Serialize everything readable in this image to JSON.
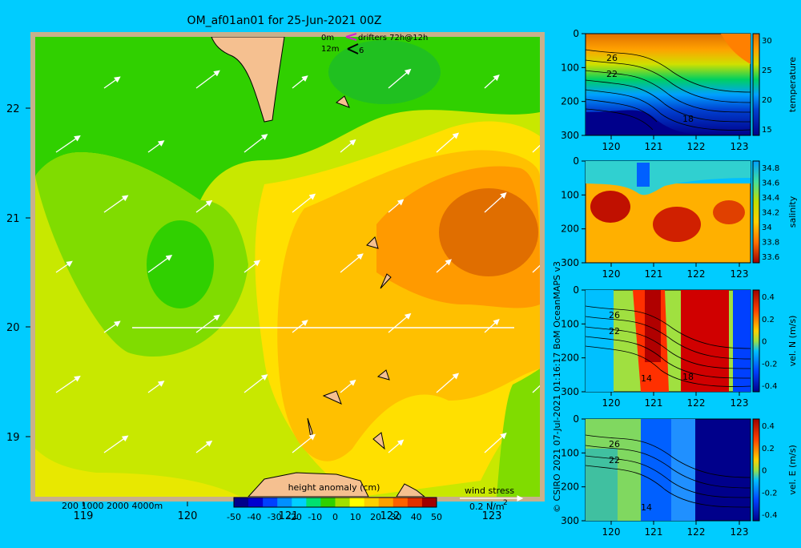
{
  "title": "OM_af01an01 for 25-Jun-2021 00Z",
  "map": {
    "lon_ticks": [
      "119",
      "120",
      "121",
      "122",
      "123"
    ],
    "lat_ticks": [
      "22",
      "21",
      "20",
      "19"
    ],
    "drifters": {
      "row1_depth": "0m",
      "row1_text": "drifters 72h@12h",
      "row2_depth": "12m",
      "row2_marker": "6"
    },
    "bathymetry_legend": "200  1000  2000  4000m",
    "colorbar": {
      "title": "height anomaly (cm)",
      "ticks": [
        "-50",
        "-40",
        "-30",
        "-20",
        "-10",
        "0",
        "10",
        "20",
        "30",
        "40",
        "50"
      ],
      "colors": [
        "#00008b",
        "#0000d0",
        "#0040ff",
        "#0090ff",
        "#00d0ff",
        "#00e070",
        "#30d000",
        "#a0e000",
        "#ffff00",
        "#ffd000",
        "#ffa000",
        "#ff6000",
        "#e03000",
        "#a00000"
      ]
    },
    "wind_stress": {
      "label": "wind stress",
      "value": "0.2 N/m",
      "exponent": "2"
    }
  },
  "credit": "© CSIRO 2021   07-Jul-2021 01:16:17 BoM OceanMAPS v3",
  "panels": [
    {
      "id": "temperature",
      "label": "temperature",
      "y_ticks": [
        "0",
        "100",
        "200",
        "300"
      ],
      "x_ticks": [
        "120",
        "121",
        "122",
        "123"
      ],
      "cbar_ticks": [
        "30",
        "25",
        "20",
        "15"
      ],
      "contour_labels": [
        "26",
        "22",
        "18"
      ]
    },
    {
      "id": "salinity",
      "label": "salinity",
      "y_ticks": [
        "0",
        "100",
        "200",
        "300"
      ],
      "x_ticks": [
        "120",
        "121",
        "122",
        "123"
      ],
      "cbar_ticks": [
        "34.8",
        "34.6",
        "34.4",
        "34.2",
        "34",
        "33.8",
        "33.6"
      ],
      "contour_labels": []
    },
    {
      "id": "veln",
      "label": "vel. N (m/s)",
      "y_ticks": [
        "0",
        "100",
        "200",
        "300"
      ],
      "x_ticks": [
        "120",
        "121",
        "122",
        "123"
      ],
      "cbar_ticks": [
        "0.4",
        "0.2",
        "0",
        "-0.2",
        "-0.4"
      ],
      "contour_labels": [
        "26",
        "22",
        "14",
        "18"
      ]
    },
    {
      "id": "vele",
      "label": "vel. E (m/s)",
      "y_ticks": [
        "0",
        "100",
        "200",
        "300"
      ],
      "x_ticks": [
        "120",
        "121",
        "122",
        "123"
      ],
      "cbar_ticks": [
        "0.4",
        "0.2",
        "0",
        "-0.2",
        "-0.4"
      ],
      "contour_labels": [
        "26",
        "22",
        "14"
      ]
    }
  ]
}
